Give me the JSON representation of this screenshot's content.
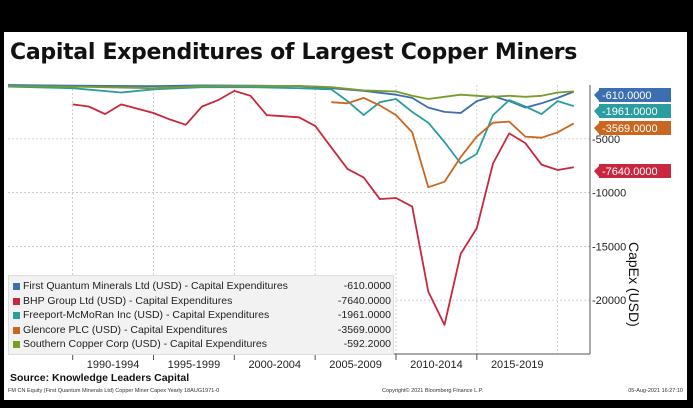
{
  "title": "Capital Expenditures of Largest Copper Miners",
  "source": "Source: Knowledge Leaders Capital",
  "footer": {
    "left": "FM CN Equity (First Quantum Minerals Ltd) Copper Miner Capex  Yearly 18AUG1971-0",
    "middle": "Copyright© 2021 Bloomberg Finance L.P.",
    "right": "05-Aug-2021 16:27:10"
  },
  "chart_data": {
    "type": "line",
    "ylabel": "CapEx (USD)",
    "ylim": [
      -25000,
      0
    ],
    "y_ticks": [
      -5000,
      -10000,
      -15000,
      -20000
    ],
    "y_tick_labels": [
      "-5000",
      "-10000",
      "-15000",
      "-20000"
    ],
    "x_range": [
      1986,
      2022
    ],
    "x_periods": [
      "1990-1994",
      "1995-1999",
      "2000-2004",
      "2005-2009",
      "2010-2014",
      "2015-2019"
    ],
    "series": [
      {
        "name": "First Quantum Minerals Ltd (USD) - Capital Expenditures",
        "legend_value": "-610.0000",
        "last_value_label": "-610.0000",
        "color": "#3b6fb0",
        "points": [
          [
            1986,
            0
          ],
          [
            1989,
            -50
          ],
          [
            1992,
            -80
          ],
          [
            1995,
            -100
          ],
          [
            1998,
            -40
          ],
          [
            2001,
            -60
          ],
          [
            2004,
            -100
          ],
          [
            2006,
            -300
          ],
          [
            2008,
            -550
          ],
          [
            2010,
            -900
          ],
          [
            2011,
            -1200
          ],
          [
            2012,
            -2100
          ],
          [
            2013,
            -2500
          ],
          [
            2014,
            -2600
          ],
          [
            2015,
            -1500
          ],
          [
            2016,
            -1050
          ],
          [
            2017,
            -1500
          ],
          [
            2018,
            -2100
          ],
          [
            2019,
            -1700
          ],
          [
            2020,
            -1200
          ],
          [
            2021,
            -610
          ]
        ]
      },
      {
        "name": "BHP Group Ltd (USD) - Capital Expenditures",
        "legend_value": "-7640.0000",
        "last_value_label": "-7640.0000",
        "color": "#c8283f",
        "points": [
          [
            1990,
            -1800
          ],
          [
            1991,
            -2000
          ],
          [
            1992,
            -2700
          ],
          [
            1993,
            -1800
          ],
          [
            1995,
            -2600
          ],
          [
            1996,
            -3200
          ],
          [
            1997,
            -3700
          ],
          [
            1998,
            -2000
          ],
          [
            1999,
            -1400
          ],
          [
            2000,
            -550
          ],
          [
            2001,
            -1000
          ],
          [
            2002,
            -2800
          ],
          [
            2003,
            -2900
          ],
          [
            2004,
            -3000
          ],
          [
            2005,
            -3800
          ],
          [
            2006,
            -5800
          ],
          [
            2007,
            -7800
          ],
          [
            2008,
            -8600
          ],
          [
            2009,
            -10600
          ],
          [
            2010,
            -10500
          ],
          [
            2011,
            -11300
          ],
          [
            2012,
            -19200
          ],
          [
            2013,
            -22300
          ],
          [
            2014,
            -15700
          ],
          [
            2015,
            -13300
          ],
          [
            2016,
            -7300
          ],
          [
            2017,
            -4500
          ],
          [
            2018,
            -5400
          ],
          [
            2019,
            -7400
          ],
          [
            2020,
            -7900
          ],
          [
            2021,
            -7640
          ]
        ]
      },
      {
        "name": "Freeport-McMoRan Inc (USD) - Capital Expenditures",
        "legend_value": "-1961.0000",
        "last_value_label": "-1961.0000",
        "color": "#2a9d9f",
        "points": [
          [
            1986,
            -150
          ],
          [
            1990,
            -300
          ],
          [
            1993,
            -700
          ],
          [
            1995,
            -400
          ],
          [
            1998,
            -200
          ],
          [
            2001,
            -200
          ],
          [
            2004,
            -300
          ],
          [
            2006,
            -400
          ],
          [
            2007,
            -1500
          ],
          [
            2008,
            -2800
          ],
          [
            2009,
            -1600
          ],
          [
            2010,
            -1300
          ],
          [
            2011,
            -2500
          ],
          [
            2012,
            -3500
          ],
          [
            2013,
            -5300
          ],
          [
            2014,
            -7300
          ],
          [
            2015,
            -6400
          ],
          [
            2016,
            -2800
          ],
          [
            2017,
            -1400
          ],
          [
            2018,
            -2000
          ],
          [
            2019,
            -2700
          ],
          [
            2020,
            -1500
          ],
          [
            2021,
            -1961
          ]
        ]
      },
      {
        "name": "Glencore PLC (USD) - Capital Expenditures",
        "legend_value": "-3569.0000",
        "last_value_label": "-3569.0000",
        "color": "#c9661f",
        "points": [
          [
            2006,
            -1600
          ],
          [
            2007,
            -1700
          ],
          [
            2008,
            -1200
          ],
          [
            2009,
            -1900
          ],
          [
            2010,
            -2800
          ],
          [
            2011,
            -4400
          ],
          [
            2012,
            -9500
          ],
          [
            2013,
            -9000
          ],
          [
            2014,
            -6700
          ],
          [
            2015,
            -4800
          ],
          [
            2016,
            -3500
          ],
          [
            2017,
            -3400
          ],
          [
            2018,
            -4800
          ],
          [
            2019,
            -4900
          ],
          [
            2020,
            -4400
          ],
          [
            2021,
            -3569
          ]
        ]
      },
      {
        "name": "Southern Copper Corp (USD) - Capital Expenditures",
        "legend_value": "-592.2000",
        "last_value_label": "-592.2000",
        "color": "#7a9d2a",
        "points": [
          [
            1986,
            -100
          ],
          [
            1990,
            -150
          ],
          [
            1995,
            -300
          ],
          [
            1998,
            -100
          ],
          [
            2001,
            -100
          ],
          [
            2004,
            -80
          ],
          [
            2006,
            -200
          ],
          [
            2008,
            -500
          ],
          [
            2010,
            -600
          ],
          [
            2011,
            -1000
          ],
          [
            2012,
            -1300
          ],
          [
            2013,
            -1100
          ],
          [
            2014,
            -900
          ],
          [
            2015,
            -1000
          ],
          [
            2016,
            -1100
          ],
          [
            2017,
            -1000
          ],
          [
            2018,
            -1100
          ],
          [
            2019,
            -1000
          ],
          [
            2020,
            -700
          ],
          [
            2021,
            -592
          ]
        ]
      }
    ]
  }
}
